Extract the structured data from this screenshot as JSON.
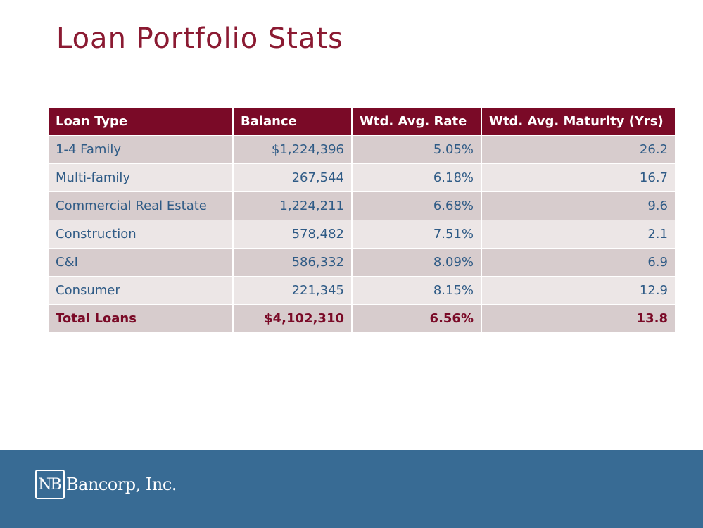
{
  "title": "Loan Portfolio Stats",
  "table": {
    "headers": [
      "Loan Type",
      "Balance",
      "Wtd. Avg. Rate",
      "Wtd. Avg. Maturity (Yrs)"
    ],
    "rows": [
      [
        "1-4 Family",
        "$1,224,396",
        "5.05%",
        "26.2"
      ],
      [
        "Multi-family",
        "267,544",
        "6.18%",
        "16.7"
      ],
      [
        "Commercial Real Estate",
        "1,224,211",
        "6.68%",
        "9.6"
      ],
      [
        "Construction",
        "578,482",
        "7.51%",
        "2.1"
      ],
      [
        "C&I",
        "586,332",
        "8.09%",
        "6.9"
      ],
      [
        "Consumer",
        "221,345",
        "8.15%",
        "12.9"
      ]
    ],
    "total": [
      "Total Loans",
      "$4,102,310",
      "6.56%",
      "13.8"
    ]
  },
  "footer": {
    "logo_mark": "NB",
    "company": "Bancorp, Inc."
  },
  "colors": {
    "title": "#8b1a32",
    "header_bg": "#7a0a27",
    "row_dark": "#d7cccd",
    "row_light": "#ece6e6",
    "body_text": "#2f5b86",
    "footer_bg": "#386b94"
  }
}
